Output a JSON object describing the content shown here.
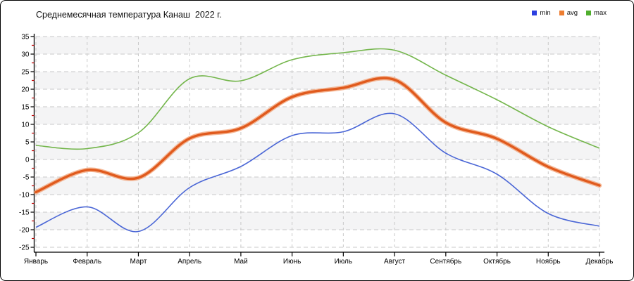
{
  "window": {
    "title": "Среднемесячная температура Канаш  2022 г."
  },
  "chart_data": {
    "type": "line",
    "title": "Среднемесячная температура Канаш  2022 г.",
    "x_categories": [
      "Январь",
      "Февраль",
      "Март",
      "Апрель",
      "Май",
      "Июнь",
      "Июль",
      "Август",
      "Сентябрь",
      "Октябрь",
      "Ноябрь",
      "Декабрь"
    ],
    "series": [
      {
        "name": "min",
        "color": "#4a66d6",
        "legend_color": "#2b3fe0",
        "values": [
          -19.3,
          -13.5,
          -20.5,
          -8.0,
          -2.0,
          6.8,
          7.9,
          13.0,
          1.8,
          -4.2,
          -15.4,
          -19.0
        ]
      },
      {
        "name": "avg",
        "color": "#e05a1d",
        "halo_color": "#f2a176",
        "legend_color": "#ed7d31",
        "values": [
          -9.3,
          -3.0,
          -5.2,
          6.0,
          8.9,
          17.8,
          20.4,
          22.7,
          10.5,
          5.9,
          -2.1,
          -7.4
        ]
      },
      {
        "name": "max",
        "color": "#74b64c",
        "legend_color": "#4fae2d",
        "values": [
          4.0,
          3.1,
          7.6,
          23.0,
          22.4,
          28.4,
          30.4,
          31.1,
          24.0,
          17.0,
          9.3,
          3.2
        ]
      }
    ],
    "ylim": [
      -25,
      35
    ],
    "y_tick_step": 5,
    "y_minor_tick_step": 2.5,
    "y_tick_labels": [
      "35",
      "30",
      "25",
      "20",
      "15",
      "10",
      "5",
      "0",
      "-5",
      "-10",
      "-15",
      "-20",
      "-25"
    ],
    "grid_on": true,
    "grid_color": "#c9c9c9",
    "band_colors": [
      "#f4f4f5",
      "#ffffff"
    ],
    "axis_color": "#000000",
    "minor_tick_color": "#c00000",
    "legend_position": "top-right",
    "xlabel": "",
    "ylabel": ""
  }
}
